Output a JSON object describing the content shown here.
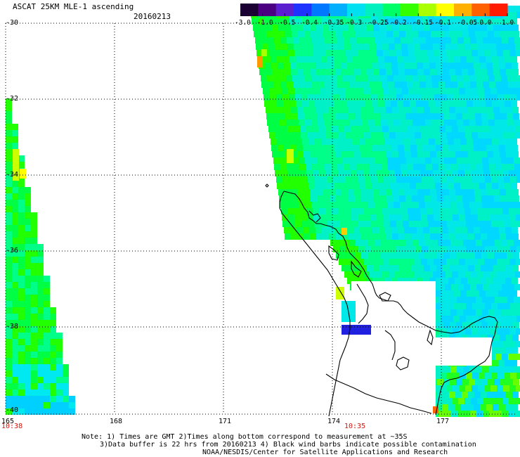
{
  "header": {
    "title": "ASCAT 25KM MLE-1 ascending",
    "date": "20160213"
  },
  "colorbar": {
    "labels": [
      "-3.0",
      "-1.0",
      "-0.5",
      "-0.4",
      "-0.35",
      "-0.3",
      "-0.25",
      "-0.2",
      "-0.15",
      "-0.1",
      "-0.05",
      "0.0",
      "1.0"
    ],
    "colors": [
      "#1a0033",
      "#4b0082",
      "#5b1fd0",
      "#1f33ff",
      "#0077ff",
      "#00b0ff",
      "#00e0f0",
      "#00f0c0",
      "#00ff66",
      "#33ff00",
      "#aaff00",
      "#ffff00",
      "#ffb000",
      "#ff6000",
      "#ff1a00"
    ]
  },
  "axes": {
    "lat_labels": [
      "-30",
      "-32",
      "-34",
      "-36",
      "-38",
      "-40"
    ],
    "lon_labels": [
      "165",
      "168",
      "171",
      "174",
      "177"
    ],
    "time_labels": [
      "10:38",
      "10:35"
    ]
  },
  "notes": {
    "line1": "Note: 1) Times are GMT 2)Times along bottom correspond to measurement at ~35S",
    "line2": "3)Data buffer is 22 hrs from 20160213 4) Black wind barbs indicate possible contamination",
    "line3": "NOAA/NESDIS/Center for Satellite Applications and Research"
  },
  "style": {
    "grid_color": "#000000",
    "time_color": "#d4140c"
  }
}
